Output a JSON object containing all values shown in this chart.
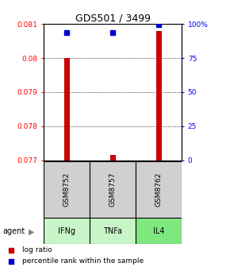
{
  "title": "GDS501 / 3499",
  "samples": [
    "GSM8752",
    "GSM8757",
    "GSM8762"
  ],
  "agents": [
    "IFNg",
    "TNFa",
    "IL4"
  ],
  "agent_colors": [
    "#c8f5c8",
    "#c8f5c8",
    "#7ee87e"
  ],
  "log_ratio_values": [
    0.08,
    0.07715,
    0.0808
  ],
  "log_ratio_base": 0.077,
  "percentile_values": [
    94.0,
    94.0,
    99.5
  ],
  "ylim_left": [
    0.077,
    0.081
  ],
  "ylim_right": [
    0,
    100
  ],
  "yticks_left": [
    0.077,
    0.078,
    0.079,
    0.08,
    0.081
  ],
  "ytick_labels_left": [
    "0.077",
    "0.078",
    "0.079",
    "0.08",
    "0.081"
  ],
  "yticks_right": [
    0,
    25,
    50,
    75,
    100
  ],
  "ytick_labels_right": [
    "0",
    "25",
    "50",
    "75",
    "100%"
  ],
  "bar_color": "#cc0000",
  "dot_color": "#0000cc",
  "sample_box_color": "#d0d0d0",
  "grid_color": "#888888"
}
